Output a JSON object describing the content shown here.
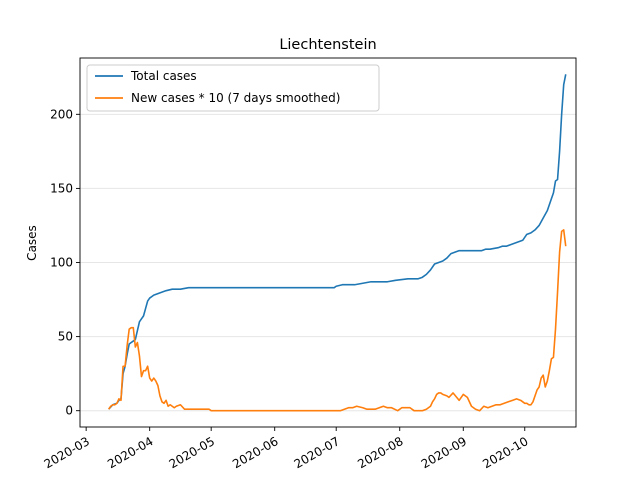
{
  "chart_data": {
    "type": "line",
    "title": "Liechtenstein",
    "xlabel": "",
    "ylabel": "Cases",
    "xlim": [
      "2020-02-27",
      "2020-10-26"
    ],
    "ylim": [
      -11,
      238
    ],
    "grid": "horizontal",
    "legend_position": "upper-left",
    "x_ticks": [
      "2020-03-01",
      "2020-04-01",
      "2020-05-01",
      "2020-06-01",
      "2020-07-01",
      "2020-08-01",
      "2020-09-01",
      "2020-10-01"
    ],
    "x_tick_labels": [
      "2020-03",
      "2020-04",
      "2020-05",
      "2020-06",
      "2020-07",
      "2020-08",
      "2020-09",
      "2020-10"
    ],
    "y_ticks": [
      0,
      50,
      100,
      150,
      200
    ],
    "y_tick_labels": [
      "0",
      "50",
      "100",
      "150",
      "200"
    ],
    "series": [
      {
        "name": "Total cases",
        "color": "#1f77b4",
        "x": [
          "2020-03-12",
          "2020-03-14",
          "2020-03-16",
          "2020-03-17",
          "2020-03-18",
          "2020-03-19",
          "2020-03-20",
          "2020-03-21",
          "2020-03-22",
          "2020-03-23",
          "2020-03-24",
          "2020-03-25",
          "2020-03-26",
          "2020-03-27",
          "2020-03-28",
          "2020-03-29",
          "2020-03-30",
          "2020-03-31",
          "2020-04-01",
          "2020-04-02",
          "2020-04-03",
          "2020-04-05",
          "2020-04-07",
          "2020-04-09",
          "2020-04-12",
          "2020-04-16",
          "2020-04-20",
          "2020-04-24",
          "2020-04-30",
          "2020-06-01",
          "2020-06-30",
          "2020-07-01",
          "2020-07-04",
          "2020-07-06",
          "2020-07-10",
          "2020-07-14",
          "2020-07-18",
          "2020-07-26",
          "2020-07-30",
          "2020-08-05",
          "2020-08-10",
          "2020-08-12",
          "2020-08-14",
          "2020-08-16",
          "2020-08-18",
          "2020-08-20",
          "2020-08-22",
          "2020-08-24",
          "2020-08-26",
          "2020-08-28",
          "2020-08-30",
          "2020-09-01",
          "2020-09-05",
          "2020-09-10",
          "2020-09-12",
          "2020-09-14",
          "2020-09-18",
          "2020-09-20",
          "2020-09-22",
          "2020-09-24",
          "2020-09-26",
          "2020-09-28",
          "2020-09-30",
          "2020-10-02",
          "2020-10-04",
          "2020-10-06",
          "2020-10-08",
          "2020-10-10",
          "2020-10-12",
          "2020-10-14",
          "2020-10-15",
          "2020-10-16",
          "2020-10-17",
          "2020-10-18",
          "2020-10-19",
          "2020-10-20",
          "2020-10-21"
        ],
        "values": [
          1,
          4,
          5,
          7,
          8,
          25,
          30,
          38,
          45,
          46,
          47,
          48,
          54,
          60,
          62,
          64,
          69,
          74,
          76,
          77,
          78,
          79,
          80,
          81,
          82,
          82,
          83,
          83,
          83,
          83,
          83,
          84,
          85,
          85,
          85,
          86,
          87,
          87,
          88,
          89,
          89,
          90,
          92,
          95,
          99,
          100,
          101,
          103,
          106,
          107,
          108,
          108,
          108,
          108,
          109,
          109,
          110,
          111,
          111,
          112,
          113,
          114,
          115,
          119,
          120,
          122,
          125,
          130,
          135,
          143,
          147,
          155,
          156,
          175,
          200,
          220,
          227
        ]
      },
      {
        "name": "New cases * 10 (7 days smoothed)",
        "color": "#ff7f0e",
        "x": [
          "2020-03-12",
          "2020-03-13",
          "2020-03-14",
          "2020-03-15",
          "2020-03-16",
          "2020-03-17",
          "2020-03-18",
          "2020-03-19",
          "2020-03-20",
          "2020-03-21",
          "2020-03-22",
          "2020-03-23",
          "2020-03-24",
          "2020-03-25",
          "2020-03-26",
          "2020-03-27",
          "2020-03-28",
          "2020-03-29",
          "2020-03-30",
          "2020-03-31",
          "2020-04-01",
          "2020-04-02",
          "2020-04-03",
          "2020-04-04",
          "2020-04-05",
          "2020-04-06",
          "2020-04-07",
          "2020-04-08",
          "2020-04-09",
          "2020-04-10",
          "2020-04-11",
          "2020-04-12",
          "2020-04-13",
          "2020-04-14",
          "2020-04-16",
          "2020-04-18",
          "2020-04-21",
          "2020-04-24",
          "2020-04-28",
          "2020-04-30",
          "2020-05-01",
          "2020-06-01",
          "2020-06-30",
          "2020-07-03",
          "2020-07-05",
          "2020-07-07",
          "2020-07-09",
          "2020-07-11",
          "2020-07-14",
          "2020-07-16",
          "2020-07-18",
          "2020-07-20",
          "2020-07-22",
          "2020-07-24",
          "2020-07-26",
          "2020-07-28",
          "2020-07-31",
          "2020-08-02",
          "2020-08-04",
          "2020-08-06",
          "2020-08-08",
          "2020-08-10",
          "2020-08-12",
          "2020-08-14",
          "2020-08-16",
          "2020-08-17",
          "2020-08-18",
          "2020-08-19",
          "2020-08-20",
          "2020-08-21",
          "2020-08-22",
          "2020-08-24",
          "2020-08-25",
          "2020-08-27",
          "2020-08-30",
          "2020-09-01",
          "2020-09-03",
          "2020-09-05",
          "2020-09-07",
          "2020-09-09",
          "2020-09-11",
          "2020-09-13",
          "2020-09-15",
          "2020-09-17",
          "2020-09-19",
          "2020-09-21",
          "2020-09-23",
          "2020-09-25",
          "2020-09-27",
          "2020-09-29",
          "2020-10-01",
          "2020-10-02",
          "2020-10-03",
          "2020-10-04",
          "2020-10-05",
          "2020-10-06",
          "2020-10-07",
          "2020-10-08",
          "2020-10-09",
          "2020-10-10",
          "2020-10-11",
          "2020-10-12",
          "2020-10-13",
          "2020-10-14",
          "2020-10-15",
          "2020-10-16",
          "2020-10-17",
          "2020-10-18",
          "2020-10-19",
          "2020-10-20",
          "2020-10-21"
        ],
        "values": [
          1,
          3,
          4,
          4,
          5,
          8,
          7,
          30,
          30,
          44,
          55,
          56,
          56,
          43,
          46,
          37,
          23,
          27,
          27,
          30,
          22,
          20,
          22,
          20,
          17,
          10,
          6,
          5,
          7,
          3,
          4,
          3,
          2,
          3,
          4,
          1,
          1,
          1,
          1,
          1,
          0,
          0,
          0,
          0,
          1,
          2,
          2,
          3,
          2,
          1,
          1,
          1,
          2,
          3,
          2,
          2,
          0,
          2,
          2,
          2,
          0,
          0,
          0,
          1,
          3,
          6,
          8,
          11,
          12,
          12,
          11,
          10,
          9,
          12,
          7,
          11,
          9,
          3,
          1,
          0,
          3,
          2,
          3,
          4,
          4,
          5,
          6,
          7,
          8,
          7,
          5,
          5,
          4,
          4,
          6,
          10,
          14,
          16,
          22,
          24,
          16,
          20,
          27,
          35,
          36,
          55,
          80,
          107,
          121,
          122,
          111
        ]
      }
    ]
  }
}
